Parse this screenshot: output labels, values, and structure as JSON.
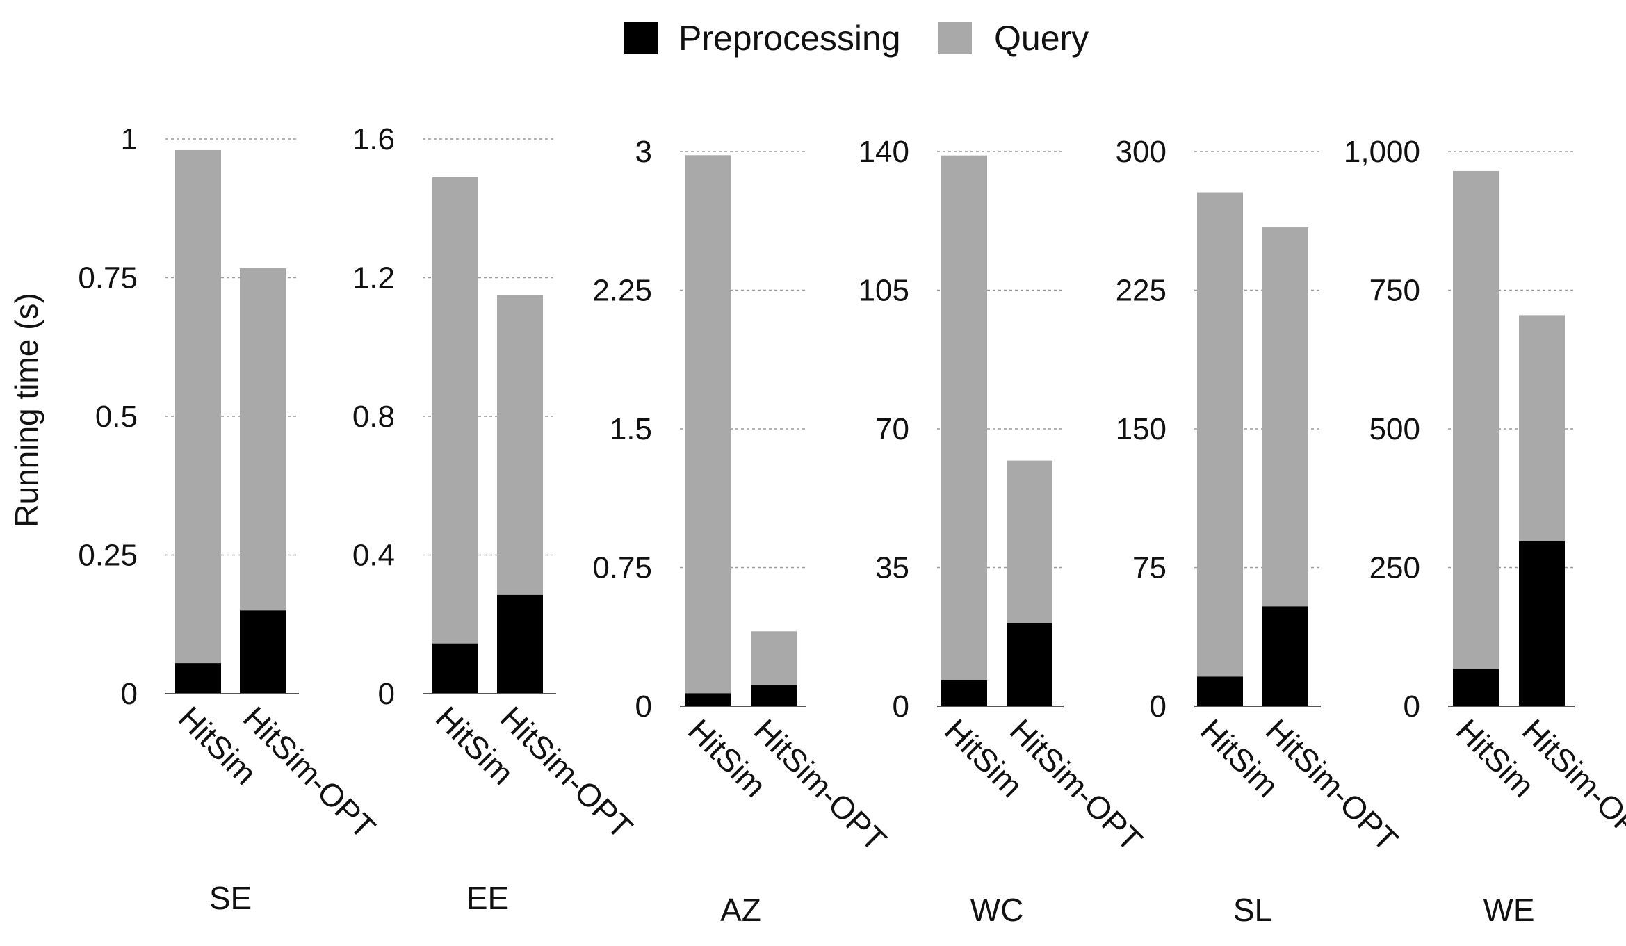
{
  "chart_data": {
    "type": "bar",
    "stacked": true,
    "ylabel": "Running time (s)",
    "legend": {
      "position": "top-center",
      "entries": [
        {
          "name": "Preprocessing",
          "color": "#000000"
        },
        {
          "name": "Query",
          "color": "#a9a9a9"
        }
      ]
    },
    "series_names": [
      "Preprocessing",
      "Query"
    ],
    "categories": [
      "HitSim",
      "HitSim-OPT"
    ],
    "panels": [
      {
        "dataset": "SE",
        "ylim": [
          0,
          1
        ],
        "ticks": [
          "0",
          "0.25",
          "0.5",
          "0.75",
          "1"
        ],
        "tick_values": [
          0,
          0.25,
          0.5,
          0.75,
          1
        ],
        "preprocessing": [
          0.055,
          0.15
        ],
        "query": [
          0.925,
          0.617
        ]
      },
      {
        "dataset": "EE",
        "ylim": [
          0,
          1.6
        ],
        "ticks": [
          "0",
          "0.4",
          "0.8",
          "1.2",
          "1.6"
        ],
        "tick_values": [
          0,
          0.4,
          0.8,
          1.2,
          1.6
        ],
        "preprocessing": [
          0.145,
          0.285
        ],
        "query": [
          1.345,
          0.865
        ]
      },
      {
        "dataset": "AZ",
        "ylim": [
          0,
          3
        ],
        "ticks": [
          "0",
          "0.75",
          "1.5",
          "2.25",
          "3"
        ],
        "tick_values": [
          0,
          0.75,
          1.5,
          2.25,
          3
        ],
        "preprocessing": [
          0.07,
          0.115
        ],
        "query": [
          2.91,
          0.29
        ]
      },
      {
        "dataset": "WC",
        "ylim": [
          0,
          140
        ],
        "ticks": [
          "0",
          "35",
          "70",
          "105",
          "140"
        ],
        "tick_values": [
          0,
          35,
          70,
          105,
          140
        ],
        "preprocessing": [
          6.5,
          21
        ],
        "query": [
          132.5,
          41
        ]
      },
      {
        "dataset": "SL",
        "ylim": [
          0,
          300
        ],
        "ticks": [
          "0",
          "75",
          "150",
          "225",
          "300"
        ],
        "tick_values": [
          0,
          75,
          150,
          225,
          300
        ],
        "preprocessing": [
          16,
          54
        ],
        "query": [
          262,
          205
        ]
      },
      {
        "dataset": "WE",
        "ylim": [
          0,
          1000
        ],
        "ticks": [
          "0",
          "250",
          "500",
          "750",
          "1,000"
        ],
        "tick_values": [
          0,
          250,
          500,
          750,
          1000
        ],
        "preprocessing": [
          67,
          297
        ],
        "query": [
          898,
          408
        ]
      }
    ]
  }
}
